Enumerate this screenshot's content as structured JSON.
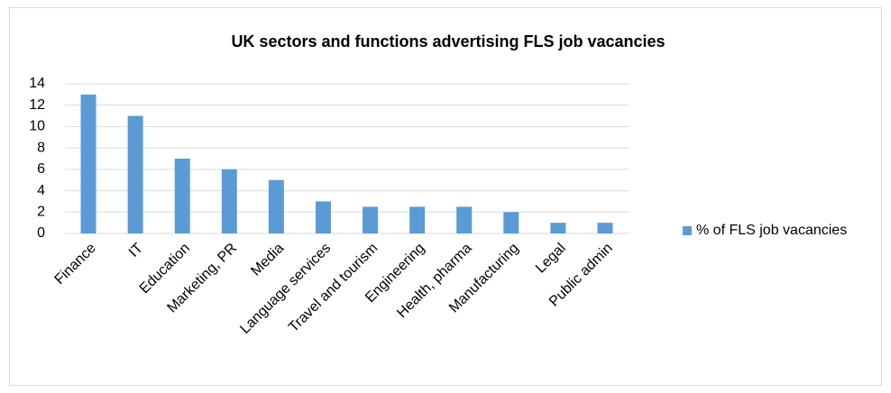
{
  "chart_data": {
    "type": "bar",
    "title": "UK sectors and functions advertising FLS job vacancies",
    "categories": [
      "Finance",
      "IT",
      "Education",
      "Marketing, PR",
      "Media",
      "Language services",
      "Travel and tourism",
      "Engineering",
      "Health, pharma",
      "Manufacturing",
      "Legal",
      "Public admin"
    ],
    "series": [
      {
        "name": "% of FLS job vacancies",
        "color": "#5b9bd5",
        "values": [
          13,
          11,
          7,
          6,
          5,
          3,
          2.5,
          2.5,
          2.5,
          2,
          1,
          1
        ]
      }
    ],
    "ylim": [
      0,
      14
    ],
    "yticks": [
      0,
      2,
      4,
      6,
      8,
      10,
      12,
      14
    ],
    "grid": true,
    "legend": "right"
  }
}
